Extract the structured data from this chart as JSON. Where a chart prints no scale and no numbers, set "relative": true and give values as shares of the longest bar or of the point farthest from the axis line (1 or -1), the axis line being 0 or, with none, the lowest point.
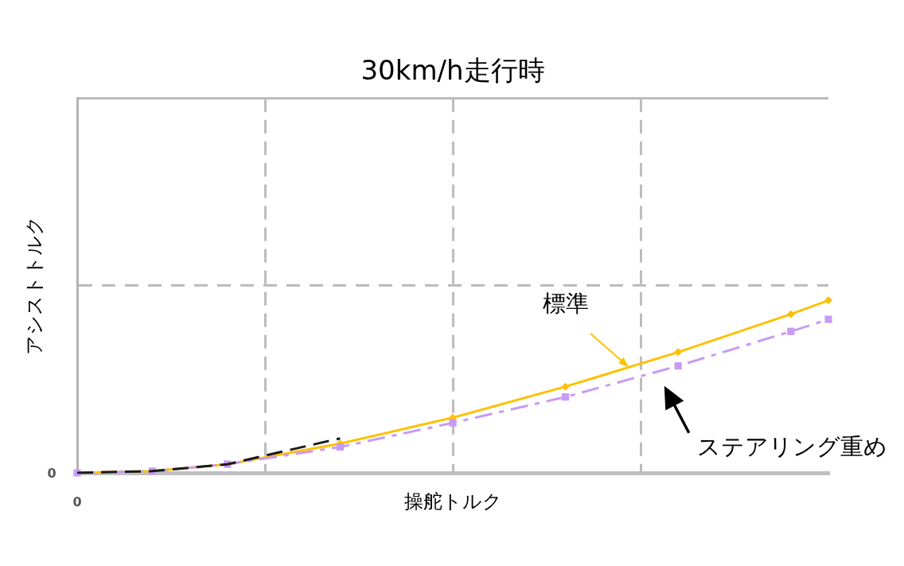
{
  "chart_data": {
    "type": "line",
    "title": "30km/h走行時",
    "xlabel": "操舵トルク",
    "ylabel": "アシストトルク",
    "relative": true,
    "grid": true,
    "categories": [
      null,
      null,
      null,
      null,
      null,
      null,
      null,
      null,
      null,
      null,
      null,
      null,
      null,
      null,
      null,
      null,
      null,
      null,
      null,
      null,
      null
    ],
    "series": [
      {
        "name": "標準",
        "color": "#ffc000",
        "marker": "diamond",
        "line_style": "solid",
        "values": [
          0,
          null,
          0.01,
          null,
          0.05,
          null,
          null,
          0.17,
          null,
          null,
          0.32,
          null,
          null,
          0.5,
          null,
          null,
          0.7,
          null,
          null,
          0.92,
          1
        ]
      },
      {
        "name": "ステアリング重め",
        "color": "#c89bf5",
        "marker": "square",
        "line_style": "dashdot",
        "values": [
          0,
          null,
          0.01,
          null,
          0.05,
          null,
          null,
          0.15,
          null,
          null,
          0.29,
          null,
          null,
          0.44,
          null,
          null,
          0.62,
          null,
          null,
          0.82,
          0.89
        ]
      },
      {
        "color": "#1a1a1a",
        "marker": "none",
        "line_style": "dashed",
        "values": [
          0,
          null,
          0.01,
          null,
          0.05,
          null,
          null,
          0.2,
          null,
          null,
          null,
          null,
          null,
          null,
          null,
          null,
          null,
          null,
          null,
          null,
          null
        ]
      }
    ],
    "annotations": [
      "0",
      "0"
    ]
  }
}
